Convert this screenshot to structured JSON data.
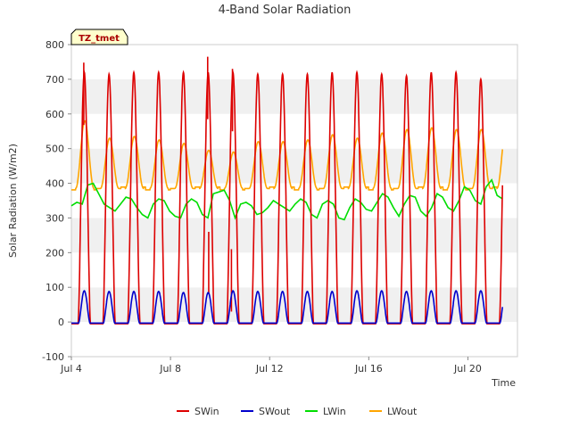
{
  "chart_data": {
    "type": "line",
    "title": "4-Band Solar Radiation",
    "xlabel": "Time",
    "ylabel": "Solar Radiation (W/m2)",
    "annotation": "TZ_tmet",
    "xlim": [
      "2024-07-04",
      "2024-07-22"
    ],
    "ylim": [
      -100,
      800
    ],
    "yticks": [
      -100,
      0,
      100,
      200,
      300,
      400,
      500,
      600,
      700,
      800
    ],
    "xticks": [
      {
        "date": "2024-07-04",
        "label": "Jul 4"
      },
      {
        "date": "2024-07-08",
        "label": "Jul 8"
      },
      {
        "date": "2024-07-12",
        "label": "Jul 12"
      },
      {
        "date": "2024-07-16",
        "label": "Jul 16"
      },
      {
        "date": "2024-07-20",
        "label": "Jul 20"
      }
    ],
    "grid": "horizontal bands",
    "legend": "bottom",
    "series": [
      {
        "name": "SWin",
        "color": "#dd0000",
        "daily_peak": [
          720,
          715,
          720,
          720,
          720,
          720,
          720,
          715,
          715,
          715,
          720,
          720,
          715,
          710,
          720,
          720,
          700,
          690
        ],
        "night_value": -5,
        "spikes": [
          {
            "x": "2024-07-04T12:00",
            "y": 748
          },
          {
            "x": "2024-07-09T12:00",
            "y": 765
          },
          {
            "x": "2024-07-10T12:00",
            "y": 730
          },
          {
            "x": "2024-07-09T13:00",
            "y": 260
          },
          {
            "x": "2024-07-10T11:00",
            "y": 210
          }
        ]
      },
      {
        "name": "SWout",
        "color": "#0000cc",
        "daily_peak": [
          90,
          88,
          88,
          88,
          85,
          85,
          90,
          88,
          88,
          88,
          88,
          90,
          90,
          88,
          90,
          90,
          90,
          88
        ],
        "night_value": -3
      },
      {
        "name": "LWin",
        "color": "#00dd00",
        "values": [
          335,
          345,
          340,
          395,
          400,
          370,
          340,
          330,
          320,
          340,
          360,
          355,
          330,
          310,
          300,
          340,
          355,
          350,
          320,
          305,
          300,
          340,
          355,
          345,
          310,
          300,
          370,
          375,
          380,
          350,
          300,
          340,
          345,
          335,
          310,
          315,
          330,
          350,
          340,
          330,
          320,
          340,
          355,
          345,
          310,
          300,
          340,
          350,
          340,
          300,
          295,
          330,
          355,
          345,
          325,
          320,
          345,
          370,
          360,
          330,
          305,
          340,
          365,
          360,
          320,
          305,
          330,
          370,
          360,
          330,
          320,
          350,
          390,
          380,
          350,
          340,
          390,
          410,
          365,
          355
        ]
      },
      {
        "name": "LWout",
        "color": "#ffa500",
        "daily_peak": [
          580,
          530,
          535,
          525,
          515,
          495,
          490,
          520,
          520,
          525,
          540,
          530,
          545,
          555,
          560,
          555,
          555,
          560
        ],
        "night_value": 385
      }
    ]
  }
}
